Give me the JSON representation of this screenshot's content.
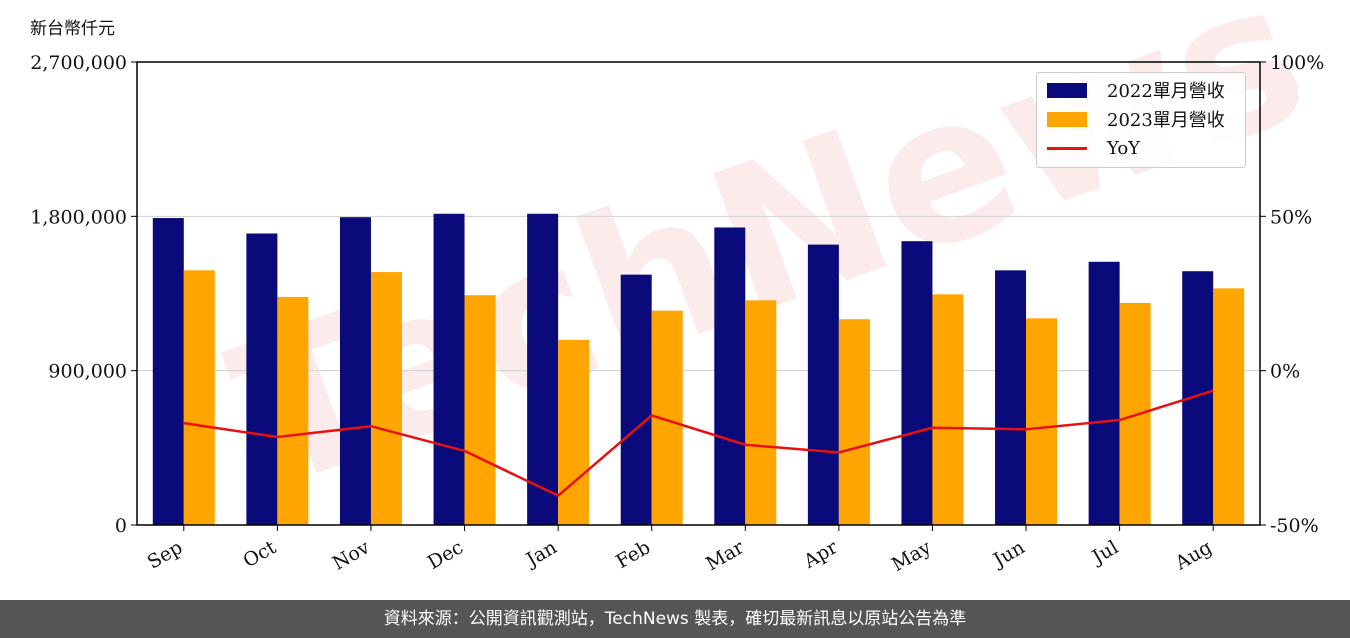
{
  "unit_label": "新台幣仟元",
  "footer": "資料來源：公開資訊觀測站，TechNews 製表，確切最新訊息以原站公告為準",
  "watermark": "TechNews",
  "colors": {
    "series_2022": "#0a0a7a",
    "series_2023": "#ffa500",
    "yoy": "#e81010",
    "grid": "#d0d0d0",
    "watermark": "rgba(220,60,60,0.10)"
  },
  "legend": {
    "items": [
      "2022單月營收",
      "2023單月營收",
      "YoY"
    ]
  },
  "chart_data": {
    "type": "bar",
    "categories": [
      "Sep",
      "Oct",
      "Nov",
      "Dec",
      "Jan",
      "Feb",
      "Mar",
      "Apr",
      "May",
      "Jun",
      "Jul",
      "Aug"
    ],
    "series": [
      {
        "name": "2022單月營收",
        "values": [
          1790000,
          1700000,
          1795000,
          1815000,
          1815000,
          1460000,
          1735000,
          1635000,
          1655000,
          1485000,
          1535000,
          1480000
        ]
      },
      {
        "name": "2023單月營收",
        "values": [
          1485000,
          1330000,
          1475000,
          1340000,
          1080000,
          1250000,
          1310000,
          1200000,
          1345000,
          1205000,
          1295000,
          1380000
        ]
      }
    ],
    "line_series": {
      "name": "YoY",
      "axis": "right",
      "values": [
        -17,
        -21.5,
        -18,
        -26,
        -40.5,
        -14.5,
        -24,
        -26.5,
        -18.5,
        -19,
        -16,
        -6.5
      ]
    },
    "ylim": [
      0,
      2700000
    ],
    "yticks": [
      "0",
      "900,000",
      "1,800,000",
      "2,700,000"
    ],
    "yticks_values": [
      0,
      900000,
      1800000,
      2700000
    ],
    "y2lim": [
      -50,
      100
    ],
    "y2ticks": [
      "-50%",
      "0%",
      "50%",
      "100%"
    ],
    "y2ticks_values": [
      -50,
      0,
      50,
      100
    ],
    "grid": "horizontal",
    "legend_position": "top-right"
  }
}
